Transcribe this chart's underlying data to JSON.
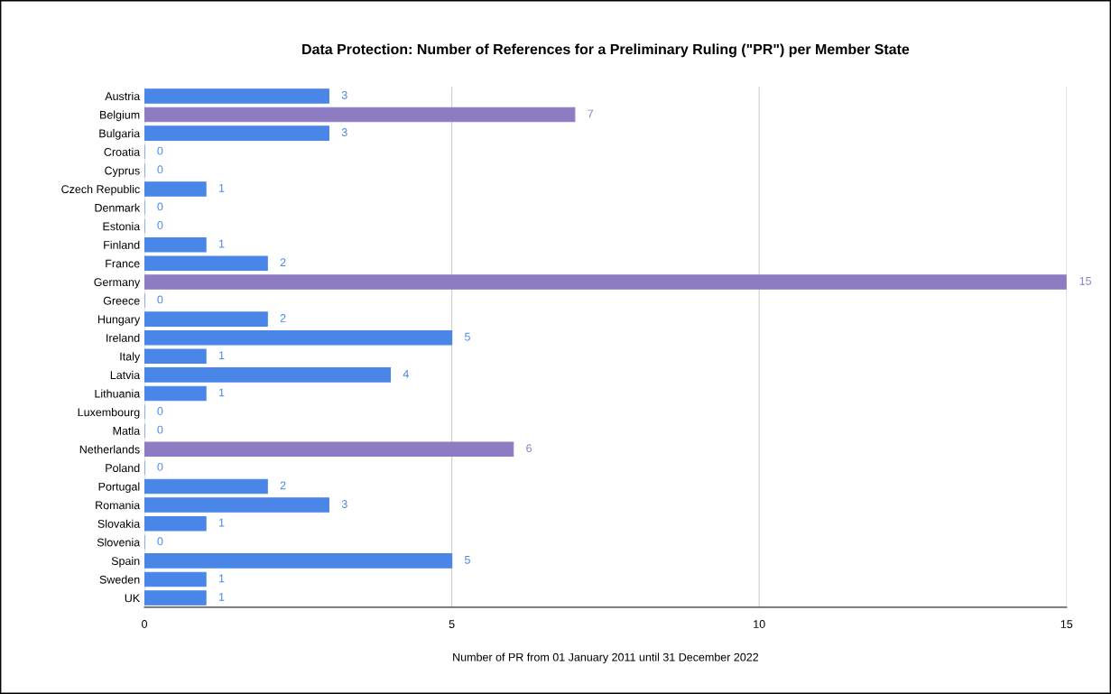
{
  "chart_data": {
    "type": "bar",
    "orientation": "horizontal",
    "title": "Data Protection: Number of References for a Preliminary Ruling (\"PR\") per Member State",
    "xlabel": "Number of PR from 01 January 2011 until 31 December 2022",
    "categories": [
      "Austria",
      "Belgium",
      "Bulgaria",
      "Croatia",
      "Cyprus",
      "Czech Republic",
      "Denmark",
      "Estonia",
      "Finland",
      "France",
      "Germany",
      "Greece",
      "Hungary",
      "Ireland",
      "Italy",
      "Latvia",
      "Lithuania",
      "Luxembourg",
      "Matla",
      "Netherlands",
      "Poland",
      "Portugal",
      "Romania",
      "Slovakia",
      "Slovenia",
      "Spain",
      "Sweden",
      "UK"
    ],
    "values": [
      3,
      7,
      3,
      0,
      0,
      1,
      0,
      0,
      1,
      2,
      15,
      0,
      2,
      5,
      1,
      4,
      1,
      0,
      0,
      6,
      0,
      2,
      3,
      1,
      0,
      5,
      1,
      1
    ],
    "colors": [
      "#4a86e8",
      "#8e7cc3",
      "#4a86e8",
      "#4a86e8",
      "#4a86e8",
      "#4a86e8",
      "#4a86e8",
      "#4a86e8",
      "#4a86e8",
      "#4a86e8",
      "#8e7cc3",
      "#4a86e8",
      "#4a86e8",
      "#4a86e8",
      "#4a86e8",
      "#4a86e8",
      "#4a86e8",
      "#4a86e8",
      "#4a86e8",
      "#8e7cc3",
      "#4a86e8",
      "#4a86e8",
      "#4a86e8",
      "#4a86e8",
      "#4a86e8",
      "#4a86e8",
      "#4a86e8",
      "#4a86e8"
    ],
    "xlim": [
      0,
      15
    ],
    "xticks": [
      0,
      5,
      10,
      15
    ],
    "grid": "x",
    "data_labels": true
  }
}
